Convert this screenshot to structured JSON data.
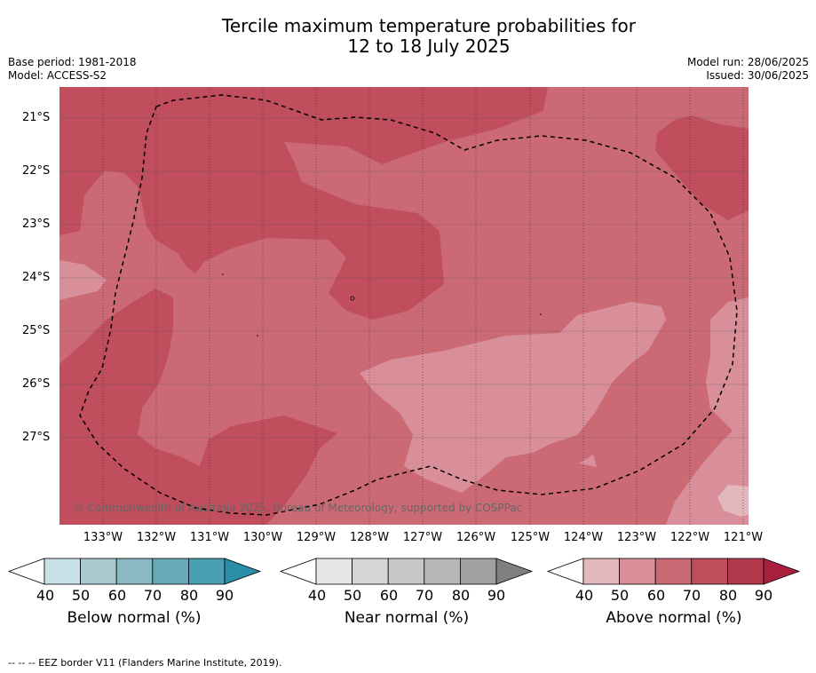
{
  "title": {
    "line1": "Tercile maximum temperature probabilities for",
    "line2": "12 to 18 July 2025"
  },
  "meta": {
    "base_period": "Base period: 1981-2018",
    "model": "Model: ACCESS-S2",
    "model_run": "Model run: 28/06/2025",
    "issued": "Issued: 30/06/2025"
  },
  "map": {
    "lat_labels": [
      "21°S",
      "22°S",
      "23°S",
      "24°S",
      "25°S",
      "26°S",
      "27°S"
    ],
    "lon_labels": [
      "133°W",
      "132°W",
      "131°W",
      "130°W",
      "129°W",
      "128°W",
      "127°W",
      "126°W",
      "125°W",
      "124°W",
      "123°W",
      "122°W",
      "121°W"
    ],
    "copyright": "© Commonwealth of Australia 2025, Bureau of Meteorology, supported by COSPPac",
    "category_colors": {
      "above_50": "#d98f99",
      "above_60": "#cb6a75",
      "above_70": "#c04e5d",
      "above_40": "#e3b7bc"
    }
  },
  "colorbars": [
    {
      "label": "Below normal (%)",
      "ticks": [
        "40",
        "50",
        "60",
        "70",
        "80",
        "90"
      ],
      "colors": [
        "#c9e1e6",
        "#a7c9cf",
        "#8ab8c3",
        "#6aa9b8",
        "#48a0b2",
        "#2a8fa6"
      ]
    },
    {
      "label": "Near normal (%)",
      "ticks": [
        "40",
        "50",
        "60",
        "70",
        "80",
        "90"
      ],
      "colors": [
        "#e6e6e6",
        "#d6d6d6",
        "#c8c8c8",
        "#b6b6b6",
        "#a0a0a0",
        "#808080"
      ]
    },
    {
      "label": "Above normal (%)",
      "ticks": [
        "40",
        "50",
        "60",
        "70",
        "80",
        "90"
      ],
      "colors": [
        "#e3b7bc",
        "#d98f99",
        "#cb6a75",
        "#c04e5d",
        "#b3394d",
        "#a8203d"
      ]
    }
  ],
  "footnote": "--  --  -- EEZ border V11 (Flanders Marine Institute, 2019)."
}
